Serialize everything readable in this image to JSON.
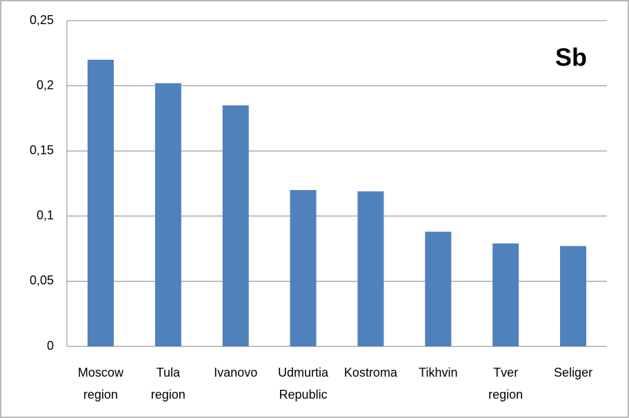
{
  "chart_data": {
    "type": "bar",
    "annotation": "Sb",
    "categories": [
      "Moscow\nregion",
      "Tula\nregion",
      "Ivanovo",
      "Udmurtia\nRepublic",
      "Kostroma",
      "Tikhvin",
      "Tver\nregion",
      "Seliger"
    ],
    "values": [
      0.22,
      0.202,
      0.185,
      0.12,
      0.119,
      0.088,
      0.079,
      0.077
    ],
    "color": "#4f81bd",
    "ylim": [
      0,
      0.25
    ],
    "yticks": [
      0,
      {
        "value": 0.05,
        "label": "0,05"
      },
      {
        "value": 0.1,
        "label": "0,1"
      },
      {
        "value": 0.15,
        "label": "0,15"
      },
      {
        "value": 0.2,
        "label": "0,2"
      },
      {
        "value": 0.25,
        "label": "0,25"
      }
    ],
    "grid": true
  }
}
